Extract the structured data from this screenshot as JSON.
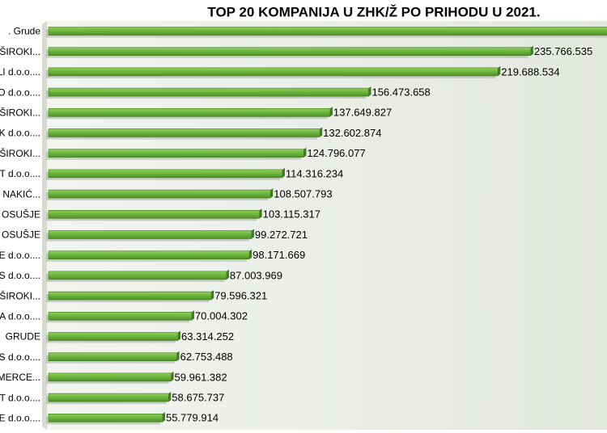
{
  "chart_data": {
    "type": "bar",
    "orientation": "horizontal",
    "title": "TOP 20 KOMPANIJA U ZHK/Ž PO PRIHODU U 2021.",
    "categories": [
      ". Grude",
      "ŠIROKI...",
      "LI d.o.o....",
      "O d.o.o....",
      "ŠIROKI...",
      "K d.o.o....",
      "ŠIROKI...",
      "T d.o.o....",
      "P NAKIĆ...",
      "OSUŠJE",
      "OSUŠJE",
      "LE d.o.o....",
      "S d.o.o....",
      "ŠIROKI...",
      "A d.o.o....",
      "GRUDE",
      "S d.o.o....",
      "MERCE...",
      "ST d.o.o....",
      "E d.o.o...."
    ],
    "values": [
      280000000,
      235766535,
      219688534,
      156473658,
      137649827,
      132602874,
      124796077,
      114316234,
      108507793,
      103115317,
      99272721,
      98171669,
      87003969,
      79596321,
      70004302,
      63314252,
      62753488,
      59961382,
      58675737,
      55779914
    ],
    "value_labels": [
      null,
      "235.766.535",
      "219.688.534",
      "156.473.658",
      "137.649.827",
      "132.602.874",
      "124.796.077",
      "114.316.234",
      "108.507.793",
      "103.115.317",
      "99.272.721",
      "98.171.669",
      "87.003.969",
      "79.596.321",
      "70.004.302",
      "63.314.252",
      "62.753.488",
      "59.961.382",
      "58.675.737",
      "55.779.914"
    ],
    "color": "#6cb33e",
    "xlim": [
      0,
      273000000
    ]
  }
}
